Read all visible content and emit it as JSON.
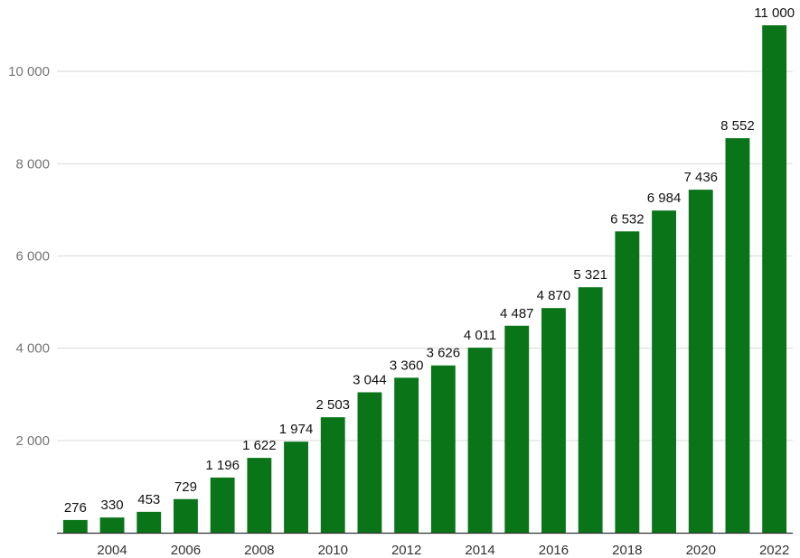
{
  "chart_data": {
    "type": "bar",
    "categories": [
      "2003",
      "2004",
      "2005",
      "2006",
      "2007",
      "2008",
      "2009",
      "2010",
      "2011",
      "2012",
      "2013",
      "2014",
      "2015",
      "2016",
      "2017",
      "2018",
      "2019",
      "2020",
      "2021",
      "2022"
    ],
    "x_tick_labels": [
      "2004",
      "2006",
      "2008",
      "2010",
      "2012",
      "2014",
      "2016",
      "2018",
      "2020",
      "2022"
    ],
    "values": [
      276,
      330,
      453,
      729,
      1196,
      1622,
      1974,
      2503,
      3044,
      3360,
      3626,
      4011,
      4487,
      4870,
      5321,
      6532,
      6984,
      7436,
      8552,
      11000
    ],
    "data_labels": [
      "276",
      "330",
      "453",
      "729",
      "1 196",
      "1 622",
      "1 974",
      "2 503",
      "3 044",
      "3 360",
      "3 626",
      "4 011",
      "4 487",
      "4 870",
      "5 321",
      "6 532",
      "6 984",
      "7 436",
      "8 552",
      "11 000"
    ],
    "y_tick_values": [
      2000,
      4000,
      6000,
      8000,
      10000
    ],
    "y_tick_labels": [
      "2 000",
      "4 000",
      "6 000",
      "8 000",
      "10 000"
    ],
    "ylim": [
      0,
      11000
    ],
    "grid": true,
    "legend": "none",
    "bar_color": "#0a7518",
    "title": "",
    "xlabel": "",
    "ylabel": ""
  }
}
